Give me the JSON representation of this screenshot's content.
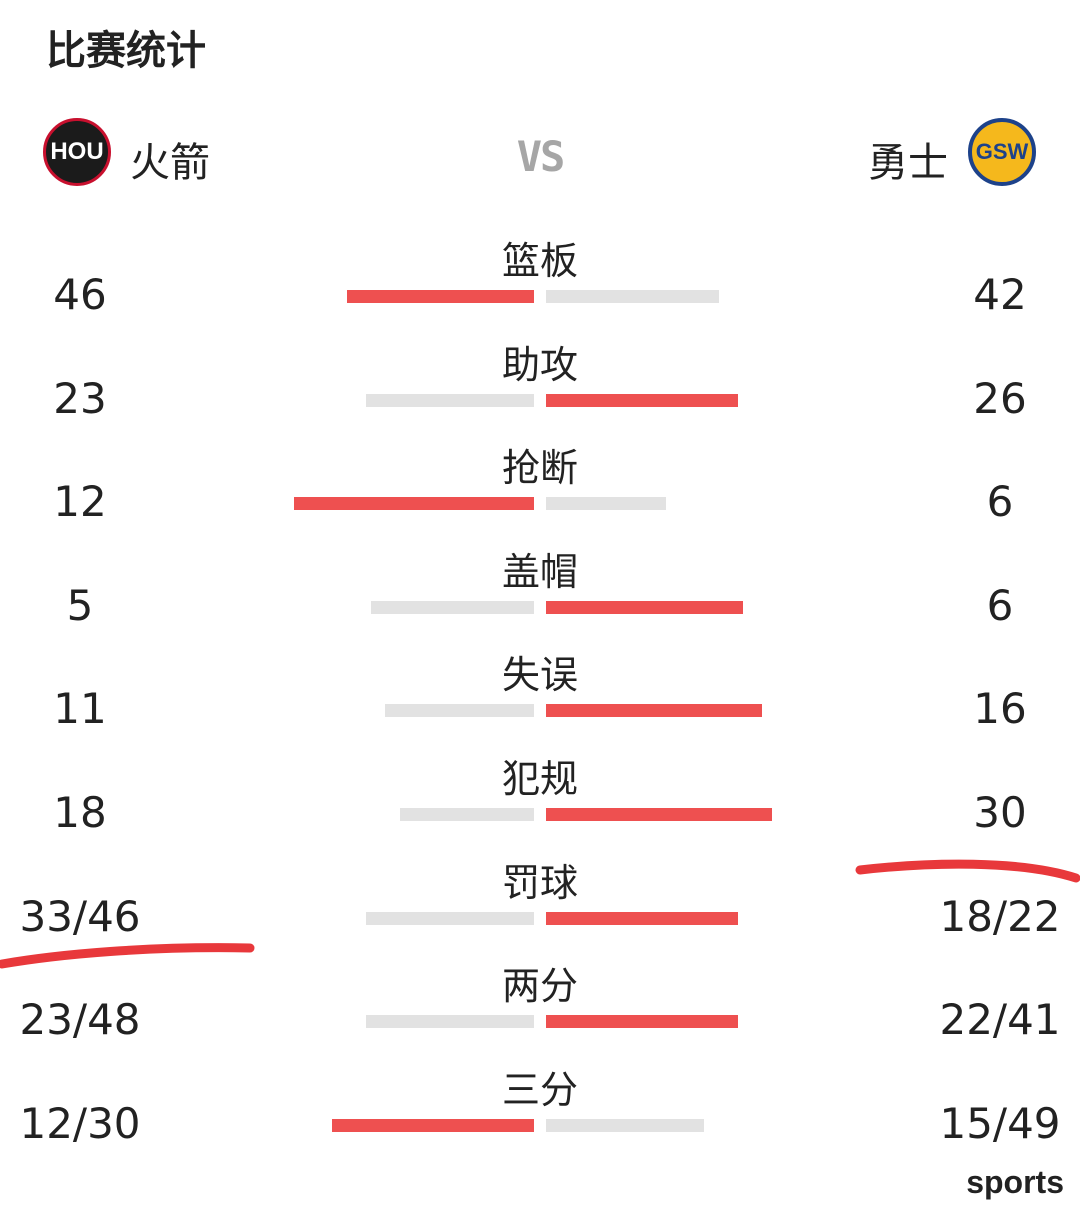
{
  "title": "比赛统计",
  "home_team": {
    "name": "火箭",
    "logo_text": "HOU",
    "logo_icon": "rockets-logo-icon"
  },
  "away_team": {
    "name": "勇士",
    "logo_text": "GSW",
    "logo_icon": "warriors-logo-icon"
  },
  "vs_label": "VS",
  "colors": {
    "leader_bar": "#ee5050",
    "trailer_bar": "#e2e2e2",
    "annotation": "#e8383b",
    "vs": "#a6a6a6"
  },
  "stats": [
    {
      "label": "篮板",
      "home": "46",
      "away": "42",
      "home_bar": 0.39,
      "away_bar": 0.36,
      "leader": "home"
    },
    {
      "label": "助攻",
      "home": "23",
      "away": "26",
      "home_bar": 0.35,
      "away_bar": 0.4,
      "leader": "away"
    },
    {
      "label": "抢断",
      "home": "12",
      "away": "6",
      "home_bar": 0.5,
      "away_bar": 0.25,
      "leader": "home"
    },
    {
      "label": "盖帽",
      "home": "5",
      "away": "6",
      "home_bar": 0.34,
      "away_bar": 0.41,
      "leader": "away"
    },
    {
      "label": "失误",
      "home": "11",
      "away": "16",
      "home_bar": 0.31,
      "away_bar": 0.45,
      "leader": "away"
    },
    {
      "label": "犯规",
      "home": "18",
      "away": "30",
      "home_bar": 0.28,
      "away_bar": 0.47,
      "leader": "away"
    },
    {
      "label": "罚球",
      "home": "33/46",
      "away": "18/22",
      "home_bar": 0.35,
      "away_bar": 0.4,
      "leader": "away"
    },
    {
      "label": "两分",
      "home": "23/48",
      "away": "22/41",
      "home_bar": 0.35,
      "away_bar": 0.4,
      "leader": "away"
    },
    {
      "label": "三分",
      "home": "12/30",
      "away": "15/49",
      "home_bar": 0.42,
      "away_bar": 0.33,
      "leader": "home"
    }
  ],
  "watermark": "sports"
}
